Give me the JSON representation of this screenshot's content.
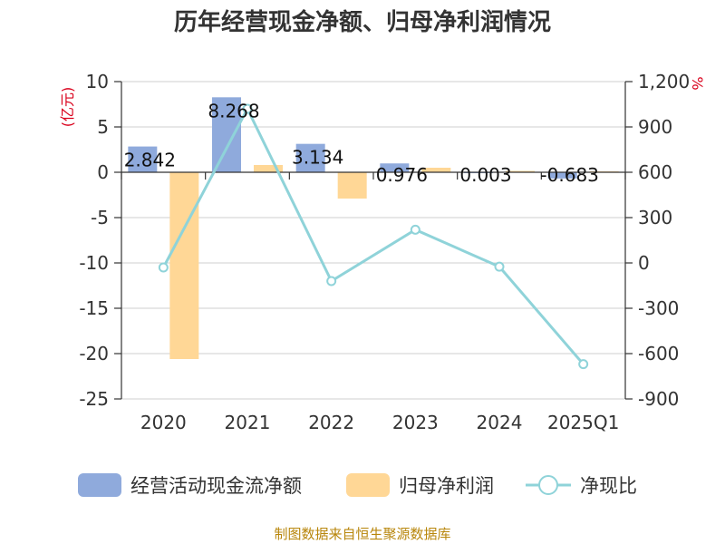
{
  "title": "历年经营现金净额、归母净利润情况",
  "source": "制图数据来自恒生聚源数据库",
  "chart_data": {
    "type": "bar",
    "categories": [
      "2020",
      "2021",
      "2022",
      "2023",
      "2024",
      "2025Q1"
    ],
    "series": [
      {
        "name": "经营活动现金流净额",
        "kind": "bar",
        "axis": "left",
        "color": "#8faadc",
        "values": [
          2.842,
          8.268,
          3.134,
          0.976,
          0.003,
          -0.683
        ],
        "labels": [
          "2.842",
          "8.268",
          "3.134",
          "0.976",
          "0.003",
          "-0.683"
        ]
      },
      {
        "name": "归母净利润",
        "kind": "bar",
        "axis": "left",
        "color": "#ffd796",
        "values": [
          -20.6,
          0.8,
          -2.9,
          0.5,
          0.15,
          0.1
        ]
      },
      {
        "name": "净现比",
        "kind": "line",
        "axis": "right",
        "color": "#8fd3d9",
        "values": [
          -30,
          1020,
          -120,
          220,
          -25,
          -670
        ]
      }
    ],
    "left_axis": {
      "unit": "(亿元)",
      "min": -25,
      "max": 10,
      "ticks": [
        "10",
        "5",
        "0",
        "-5",
        "-10",
        "-15",
        "-20",
        "-25"
      ]
    },
    "right_axis": {
      "unit": "%",
      "min": -900,
      "max": 1200,
      "ticks": [
        "1,200",
        "900",
        "600",
        "300",
        "0",
        "-300",
        "-600",
        "-900"
      ]
    },
    "grid": true,
    "legend_position": "bottom"
  }
}
